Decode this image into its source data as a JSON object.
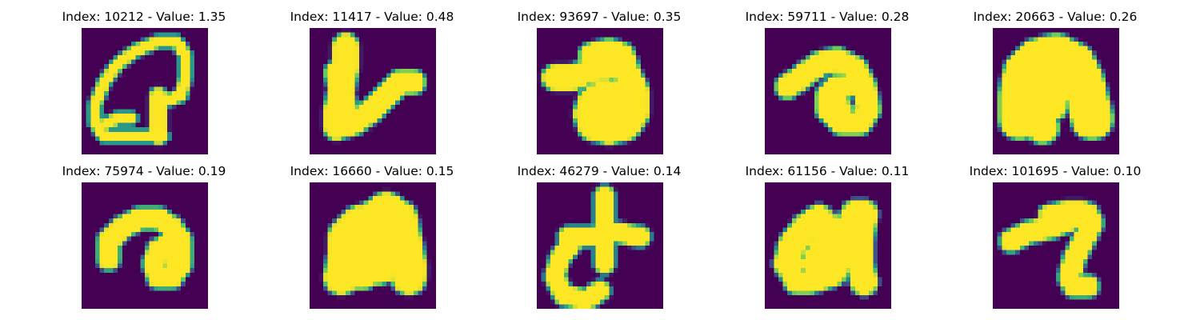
{
  "figure": {
    "panels": [
      {
        "index": 10212,
        "value": "1.35",
        "title": "Index: 10212 - Value: 1.35",
        "glyph": "loop-with-stem"
      },
      {
        "index": 11417,
        "value": "0.48",
        "title": "Index: 11417 - Value: 0.48",
        "glyph": "hook"
      },
      {
        "index": 93697,
        "value": "0.35",
        "title": "Index: 93697 - Value: 0.35",
        "glyph": "curl-blob"
      },
      {
        "index": 59711,
        "value": "0.28",
        "title": "Index: 59711 - Value: 0.28",
        "glyph": "curl-ring"
      },
      {
        "index": 20663,
        "value": "0.26",
        "title": "Index: 20663 - Value: 0.26",
        "glyph": "arch-thick"
      },
      {
        "index": 75974,
        "value": "0.19",
        "title": "Index: 75974 - Value: 0.19",
        "glyph": "curl-small"
      },
      {
        "index": 16660,
        "value": "0.15",
        "title": "Index: 16660 - Value: 0.15",
        "glyph": "bumps"
      },
      {
        "index": 46279,
        "value": "0.14",
        "title": "Index: 46279 - Value: 0.14",
        "glyph": "cross"
      },
      {
        "index": 61156,
        "value": "0.11",
        "title": "Index: 61156 - Value: 0.11",
        "glyph": "zigzag"
      },
      {
        "index": 101695,
        "value": "0.10",
        "title": "Index: 101695 - Value: 0.10",
        "glyph": "hook-bar"
      }
    ]
  },
  "colors": {
    "background": "#440154",
    "stroke": "#fde725",
    "edge": "#21918c",
    "edge_dark": "#3b528b"
  }
}
